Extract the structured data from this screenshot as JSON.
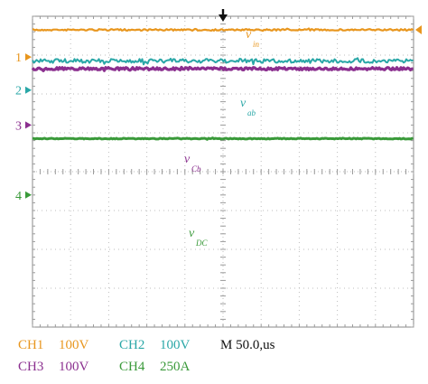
{
  "chart_data": {
    "type": "line",
    "timebase": "M 50.0,us",
    "grid": true,
    "grid_divisions": {
      "x": 10,
      "y": 8
    },
    "colors": {
      "CH1": "#e8961e",
      "CH2": "#2aa7a7",
      "CH3": "#8b2f8f",
      "CH4": "#3a9a3a",
      "trigger": "#111111",
      "grid": "#bdbdbd"
    },
    "channels": [
      {
        "id": "CH1",
        "marker": "1",
        "scale": "100V",
        "label_main": "v",
        "label_sub": "in",
        "trace_level_div": 3.65,
        "marker_level_div": 2.95
      },
      {
        "id": "CH2",
        "marker": "2",
        "scale": "100V",
        "label_main": "v",
        "label_sub": "ab",
        "trace_level_div": 2.85,
        "marker_level_div": 2.1
      },
      {
        "id": "CH3",
        "marker": "3",
        "scale": "100V",
        "label_main": "v",
        "label_sub": "Cb",
        "trace_level_div": 2.65,
        "marker_level_div": 1.2
      },
      {
        "id": "CH4",
        "marker": "4",
        "scale": "250A",
        "label_main": "v",
        "label_sub": "DC",
        "trace_level_div": 0.85,
        "marker_level_div": -0.6
      }
    ]
  },
  "legend": {
    "row1": [
      {
        "ch": "CH1",
        "scale": "100V"
      },
      {
        "ch": "CH2",
        "scale": "100V"
      }
    ],
    "row2": [
      {
        "ch": "CH3",
        "scale": "100V"
      },
      {
        "ch": "CH4",
        "scale": "250A"
      }
    ],
    "timebase": "M 50.0,us"
  }
}
